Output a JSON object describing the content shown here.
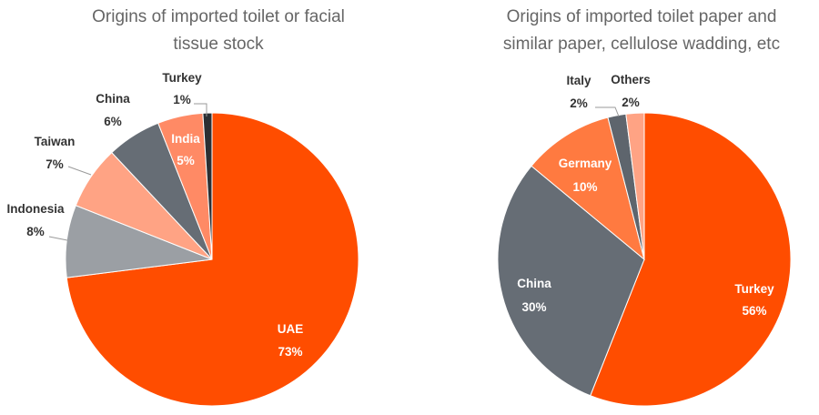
{
  "chart_data": [
    {
      "type": "pie",
      "title_lines": [
        "Origins of imported toilet or facial",
        "tissue stock"
      ],
      "slices": [
        {
          "label": "UAE",
          "value": 73,
          "value_text": "73%",
          "color": "#FF4D00"
        },
        {
          "label": "Indonesia",
          "value": 8,
          "value_text": "8%",
          "color": "#9B9FA4"
        },
        {
          "label": "Taiwan",
          "value": 7,
          "value_text": "7%",
          "color": "#FFA384"
        },
        {
          "label": "China",
          "value": 6,
          "value_text": "6%",
          "color": "#666D75"
        },
        {
          "label": "India",
          "value": 5,
          "value_text": "5%",
          "color": "#FF8A65"
        },
        {
          "label": "Turkey",
          "value": 1,
          "value_text": "1%",
          "color": "#2B2F33"
        }
      ]
    },
    {
      "type": "pie",
      "title_lines": [
        "Origins of imported toilet paper and",
        "similar paper, cellulose wadding, etc"
      ],
      "slices": [
        {
          "label": "Turkey",
          "value": 56,
          "value_text": "56%",
          "color": "#FF4D00"
        },
        {
          "label": "China",
          "value": 30,
          "value_text": "30%",
          "color": "#666D75"
        },
        {
          "label": "Germany",
          "value": 10,
          "value_text": "10%",
          "color": "#FF7A40"
        },
        {
          "label": "Italy",
          "value": 2,
          "value_text": "2%",
          "color": "#5E656D"
        },
        {
          "label": "Others",
          "value": 2,
          "value_text": "2%",
          "color": "#FFA384"
        }
      ]
    }
  ]
}
